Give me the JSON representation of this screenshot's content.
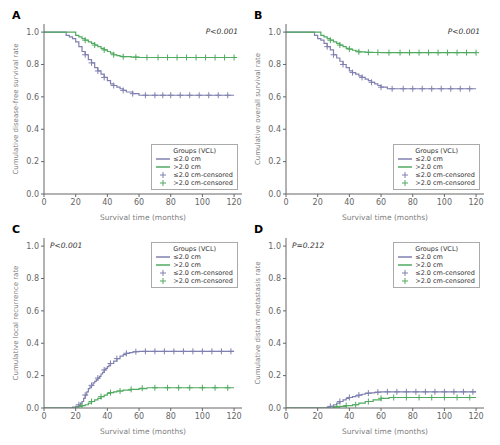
{
  "chart_data": [
    {
      "type": "line",
      "title": "A",
      "annotations": [
        "P<0.001"
      ],
      "x_label": "Survival time (months)",
      "y_label": "Cumulative disease-free survival rate",
      "xlim": [
        0,
        125
      ],
      "ylim": [
        0.0,
        1.05
      ],
      "xticks": [
        0,
        20,
        40,
        60,
        80,
        100,
        120
      ],
      "yticks": [
        {
          "value": 0.0,
          "label": "0.0"
        },
        0.2,
        0.4,
        0.6,
        0.8,
        {
          "value": 1.0,
          "label": "1.0"
        }
      ],
      "grid": false,
      "legend": "lower right",
      "legend_title": "Groups (VCL)",
      "series": [
        {
          "name": "≤2.0 cm",
          "type": "line",
          "line_style": "step",
          "color": "#8080b0",
          "x": [
            0,
            12,
            14,
            16,
            18,
            20,
            22,
            24,
            26,
            28,
            30,
            32,
            34,
            36,
            38,
            40,
            42,
            44,
            46,
            48,
            50,
            52,
            54,
            56,
            58,
            60,
            62,
            64,
            120
          ],
          "values": [
            1.0,
            1.0,
            0.98,
            0.97,
            0.96,
            0.94,
            0.91,
            0.88,
            0.86,
            0.83,
            0.81,
            0.78,
            0.76,
            0.74,
            0.72,
            0.7,
            0.68,
            0.67,
            0.66,
            0.65,
            0.64,
            0.63,
            0.63,
            0.62,
            0.62,
            0.61,
            0.61,
            0.61,
            0.61
          ]
        },
        {
          "name": ">2.0 cm",
          "type": "line",
          "line_style": "step",
          "color": "#50aa60",
          "x": [
            0,
            16,
            20,
            22,
            24,
            26,
            28,
            30,
            32,
            34,
            36,
            38,
            40,
            42,
            44,
            46,
            48,
            50,
            55,
            60,
            120
          ],
          "values": [
            1.0,
            1.0,
            0.98,
            0.97,
            0.96,
            0.95,
            0.94,
            0.93,
            0.92,
            0.91,
            0.9,
            0.89,
            0.88,
            0.87,
            0.86,
            0.855,
            0.85,
            0.848,
            0.845,
            0.843,
            0.843
          ]
        },
        {
          "name": "≤2.0 cm-censored",
          "type": "scatter",
          "marker": "+",
          "color": "#8080b0",
          "x": [
            26,
            30,
            34,
            38,
            44,
            50,
            56,
            64,
            70,
            75,
            80,
            86,
            92,
            98,
            104,
            110,
            116
          ],
          "values": [
            0.86,
            0.81,
            0.76,
            0.72,
            0.67,
            0.64,
            0.62,
            0.61,
            0.61,
            0.61,
            0.61,
            0.61,
            0.61,
            0.61,
            0.61,
            0.61,
            0.61
          ]
        },
        {
          "name": ">2.0 cm-censored",
          "type": "scatter",
          "marker": "+",
          "color": "#50aa60",
          "x": [
            26,
            32,
            38,
            44,
            50,
            58,
            65,
            72,
            78,
            84,
            90,
            96,
            102,
            108,
            114,
            120
          ],
          "values": [
            0.95,
            0.92,
            0.89,
            0.86,
            0.848,
            0.845,
            0.843,
            0.843,
            0.843,
            0.843,
            0.843,
            0.843,
            0.843,
            0.843,
            0.843,
            0.843
          ]
        }
      ]
    },
    {
      "type": "line",
      "title": "B",
      "annotations": [
        "P<0.001"
      ],
      "x_label": "Survival time (months)",
      "y_label": "Cumulative overall survival rate",
      "xlim": [
        0,
        125
      ],
      "ylim": [
        0.0,
        1.05
      ],
      "xticks": [
        0,
        20,
        40,
        60,
        80,
        100,
        120
      ],
      "yticks": [
        {
          "value": 0.0,
          "label": "0.0"
        },
        0.2,
        0.4,
        0.6,
        0.8,
        {
          "value": 1.0,
          "label": "1.0"
        }
      ],
      "grid": false,
      "legend": "lower right",
      "legend_title": "Groups (VCL)",
      "series": [
        {
          "name": "≤2.0 cm",
          "type": "line",
          "line_style": "step",
          "color": "#8080b0",
          "x": [
            0,
            14,
            18,
            20,
            22,
            24,
            26,
            28,
            30,
            32,
            34,
            36,
            38,
            40,
            42,
            44,
            46,
            48,
            50,
            52,
            54,
            56,
            58,
            60,
            62,
            64,
            66,
            120
          ],
          "values": [
            1.0,
            1.0,
            0.98,
            0.96,
            0.95,
            0.93,
            0.91,
            0.89,
            0.86,
            0.84,
            0.82,
            0.8,
            0.78,
            0.76,
            0.75,
            0.74,
            0.73,
            0.72,
            0.71,
            0.7,
            0.69,
            0.68,
            0.67,
            0.66,
            0.66,
            0.65,
            0.65,
            0.65
          ]
        },
        {
          "name": ">2.0 cm",
          "type": "line",
          "line_style": "step",
          "color": "#50aa60",
          "x": [
            0,
            18,
            22,
            24,
            26,
            28,
            30,
            32,
            34,
            36,
            38,
            40,
            42,
            44,
            46,
            50,
            55,
            60,
            120
          ],
          "values": [
            1.0,
            1.0,
            0.98,
            0.97,
            0.96,
            0.95,
            0.94,
            0.93,
            0.92,
            0.91,
            0.9,
            0.895,
            0.888,
            0.882,
            0.878,
            0.875,
            0.874,
            0.873,
            0.873
          ]
        },
        {
          "name": "≤2.0 cm-censored",
          "type": "scatter",
          "marker": "+",
          "color": "#8080b0",
          "x": [
            26,
            30,
            36,
            42,
            48,
            54,
            60,
            67,
            74,
            80,
            86,
            92,
            98,
            104,
            110,
            116
          ],
          "values": [
            0.91,
            0.86,
            0.8,
            0.75,
            0.72,
            0.69,
            0.66,
            0.65,
            0.65,
            0.65,
            0.65,
            0.65,
            0.65,
            0.65,
            0.65,
            0.65
          ]
        },
        {
          "name": ">2.0 cm-censored",
          "type": "scatter",
          "marker": "+",
          "color": "#50aa60",
          "x": [
            28,
            34,
            40,
            46,
            52,
            58,
            65,
            72,
            78,
            84,
            90,
            96,
            102,
            108,
            114,
            120
          ],
          "values": [
            0.95,
            0.92,
            0.895,
            0.878,
            0.875,
            0.874,
            0.873,
            0.873,
            0.873,
            0.873,
            0.873,
            0.873,
            0.873,
            0.873,
            0.873,
            0.873
          ]
        }
      ]
    },
    {
      "type": "line",
      "title": "C",
      "annotations": [
        "P<0.001"
      ],
      "x_label": "Survival time (months)",
      "y_label": "Cumulative local recurrence rate",
      "xlim": [
        0,
        125
      ],
      "ylim": [
        0.0,
        1.05
      ],
      "xticks": [
        0,
        20,
        40,
        60,
        80,
        100,
        120
      ],
      "yticks": [
        {
          "value": 0.0,
          "label": "0.0"
        },
        0.2,
        0.4,
        0.6,
        0.8,
        {
          "value": 1.0,
          "label": "1.0"
        }
      ],
      "grid": false,
      "legend": "upper right",
      "legend_title": "Groups (VCL)",
      "series": [
        {
          "name": "≤2.0 cm",
          "type": "line",
          "line_style": "step",
          "color": "#8080b0",
          "x": [
            0,
            16,
            18,
            20,
            22,
            23,
            24,
            25,
            26,
            27,
            28,
            29,
            30,
            31,
            32,
            33,
            34,
            35,
            36,
            37,
            38,
            39,
            40,
            41,
            42,
            44,
            46,
            48,
            50,
            52,
            54,
            56,
            58,
            60,
            62,
            64,
            120
          ],
          "values": [
            0.0,
            0.0,
            0.005,
            0.01,
            0.02,
            0.03,
            0.04,
            0.06,
            0.08,
            0.1,
            0.12,
            0.13,
            0.14,
            0.155,
            0.165,
            0.175,
            0.185,
            0.195,
            0.21,
            0.22,
            0.235,
            0.245,
            0.255,
            0.265,
            0.275,
            0.29,
            0.305,
            0.32,
            0.33,
            0.338,
            0.342,
            0.346,
            0.348,
            0.35,
            0.35,
            0.35,
            0.35
          ]
        },
        {
          "name": ">2.0 cm",
          "type": "line",
          "line_style": "step",
          "color": "#50aa60",
          "x": [
            0,
            18,
            20,
            22,
            24,
            26,
            28,
            30,
            32,
            34,
            36,
            38,
            40,
            42,
            44,
            46,
            50,
            55,
            60,
            65,
            120
          ],
          "values": [
            0.0,
            0.0,
            0.005,
            0.01,
            0.015,
            0.02,
            0.03,
            0.04,
            0.05,
            0.06,
            0.07,
            0.08,
            0.09,
            0.095,
            0.1,
            0.105,
            0.11,
            0.115,
            0.12,
            0.125,
            0.125
          ]
        },
        {
          "name": "≤2.0 cm-censored",
          "type": "scatter",
          "marker": "+",
          "color": "#8080b0",
          "x": [
            22,
            26,
            30,
            34,
            38,
            42,
            46,
            52,
            58,
            64,
            70,
            76,
            82,
            88,
            94,
            100,
            106,
            112,
            118
          ],
          "values": [
            0.02,
            0.08,
            0.14,
            0.185,
            0.235,
            0.275,
            0.305,
            0.338,
            0.348,
            0.35,
            0.35,
            0.35,
            0.35,
            0.35,
            0.35,
            0.35,
            0.35,
            0.35,
            0.35
          ]
        },
        {
          "name": ">2.0 cm-censored",
          "type": "scatter",
          "marker": "+",
          "color": "#50aa60",
          "x": [
            24,
            30,
            36,
            42,
            48,
            55,
            62,
            70,
            78,
            85,
            92,
            100,
            108,
            116
          ],
          "values": [
            0.015,
            0.04,
            0.07,
            0.095,
            0.105,
            0.115,
            0.122,
            0.125,
            0.125,
            0.125,
            0.125,
            0.125,
            0.125,
            0.125
          ]
        }
      ]
    },
    {
      "type": "line",
      "title": "D",
      "annotations": [
        "P=0.212"
      ],
      "x_label": "Survival time (months)",
      "y_label": "Cumulative distant metastasis rate",
      "xlim": [
        0,
        125
      ],
      "ylim": [
        0.0,
        1.05
      ],
      "xticks": [
        0,
        20,
        40,
        60,
        80,
        100,
        120
      ],
      "yticks": [
        {
          "value": 0.0,
          "label": "0.0"
        },
        0.2,
        0.4,
        0.6,
        0.8,
        {
          "value": 1.0,
          "label": "1.0"
        }
      ],
      "grid": false,
      "legend": "upper right",
      "legend_title": "Groups (VCL)",
      "series": [
        {
          "name": "≤2.0 cm",
          "type": "line",
          "line_style": "step",
          "color": "#8080b0",
          "x": [
            0,
            22,
            26,
            28,
            30,
            32,
            34,
            36,
            38,
            40,
            42,
            44,
            46,
            48,
            50,
            52,
            54,
            56,
            58,
            60,
            62,
            64,
            120
          ],
          "values": [
            0.0,
            0.0,
            0.005,
            0.01,
            0.02,
            0.03,
            0.04,
            0.05,
            0.06,
            0.065,
            0.07,
            0.075,
            0.08,
            0.085,
            0.09,
            0.092,
            0.094,
            0.096,
            0.098,
            0.1,
            0.1,
            0.1,
            0.1
          ]
        },
        {
          "name": ">2.0 cm",
          "type": "line",
          "line_style": "step",
          "color": "#50aa60",
          "x": [
            0,
            26,
            30,
            34,
            38,
            42,
            46,
            50,
            55,
            60,
            65,
            120
          ],
          "values": [
            0.0,
            0.0,
            0.005,
            0.01,
            0.015,
            0.02,
            0.03,
            0.04,
            0.05,
            0.06,
            0.065,
            0.065
          ]
        },
        {
          "name": "≤2.0 cm-censored",
          "type": "scatter",
          "marker": "+",
          "color": "#8080b0",
          "x": [
            28,
            34,
            40,
            46,
            52,
            58,
            64,
            70,
            76,
            82,
            88,
            94,
            100,
            106,
            112,
            118
          ],
          "values": [
            0.01,
            0.04,
            0.065,
            0.08,
            0.092,
            0.098,
            0.1,
            0.1,
            0.1,
            0.1,
            0.1,
            0.1,
            0.1,
            0.1,
            0.1,
            0.1
          ]
        },
        {
          "name": ">2.0 cm-censored",
          "type": "scatter",
          "marker": "+",
          "color": "#50aa60",
          "x": [
            32,
            38,
            44,
            52,
            60,
            68,
            76,
            84,
            92,
            100,
            108,
            116
          ],
          "values": [
            0.01,
            0.015,
            0.02,
            0.04,
            0.06,
            0.065,
            0.065,
            0.065,
            0.065,
            0.065,
            0.065,
            0.065
          ]
        }
      ]
    }
  ]
}
